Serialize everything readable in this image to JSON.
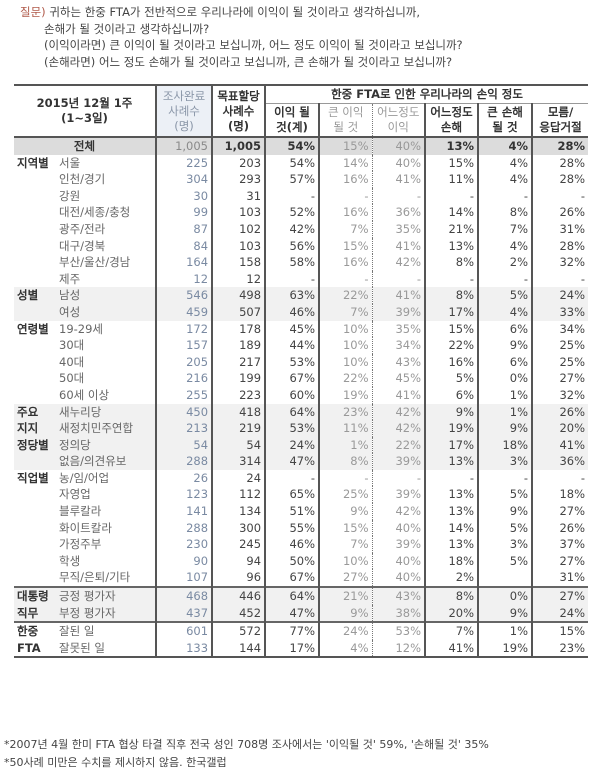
{
  "question": {
    "tag": "질문)",
    "lines": [
      "귀하는 한중 FTA가 전반적으로 우리나라에 이익이 될 것이라고 생각하십니까,",
      "손해가 될 것이라고 생각하십니까?",
      "(이익이라면) 큰 이익이 될 것이라고 보십니까, 어느 정도 이익이 될 것이라고 보십니까?",
      "(손해라면) 어느 정도 손해가 될 것이라고 보십니까, 큰 손해가 될 것이라고 보십니까?"
    ]
  },
  "table": {
    "header": {
      "period_line1": "2015년 12월 1주",
      "period_line2": "(1~3일)",
      "done_l1": "조사완료",
      "done_l2": "사례수",
      "done_l3": "(명)",
      "target_l1": "목표할당",
      "target_l2": "사례수",
      "target_l3": "(명)",
      "group_title": "한중 FTA로 인한 우리나라의 손익 정도",
      "cols": [
        {
          "l1": "이익 될",
          "l2": "것(계)"
        },
        {
          "l1": "큰 이익",
          "l2": "될 것"
        },
        {
          "l1": "어느정도",
          "l2": "이익"
        },
        {
          "l1": "어느정도",
          "l2": "손해"
        },
        {
          "l1": "큰 손해",
          "l2": "될 것"
        },
        {
          "l1": "모름/",
          "l2": "응답거절"
        }
      ]
    },
    "total": {
      "group": "전체",
      "done": "1,005",
      "target": "1,005",
      "v": [
        "54%",
        "15%",
        "40%",
        "13%",
        "4%",
        "28%"
      ]
    },
    "rows": [
      {
        "group": "지역별",
        "sub": "서울",
        "done": "225",
        "target": "203",
        "v": [
          "54%",
          "14%",
          "40%",
          "15%",
          "4%",
          "28%"
        ]
      },
      {
        "group": "",
        "sub": "인천/경기",
        "done": "304",
        "target": "293",
        "v": [
          "57%",
          "16%",
          "41%",
          "11%",
          "4%",
          "28%"
        ]
      },
      {
        "group": "",
        "sub": "강원",
        "done": "30",
        "target": "31",
        "v": [
          "-",
          "-",
          "-",
          "-",
          "-",
          "-"
        ]
      },
      {
        "group": "",
        "sub": "대전/세종/충청",
        "done": "99",
        "target": "103",
        "v": [
          "52%",
          "16%",
          "36%",
          "14%",
          "8%",
          "26%"
        ]
      },
      {
        "group": "",
        "sub": "광주/전라",
        "done": "87",
        "target": "102",
        "v": [
          "42%",
          "7%",
          "35%",
          "21%",
          "7%",
          "31%"
        ]
      },
      {
        "group": "",
        "sub": "대구/경북",
        "done": "84",
        "target": "103",
        "v": [
          "56%",
          "15%",
          "41%",
          "13%",
          "4%",
          "28%"
        ]
      },
      {
        "group": "",
        "sub": "부산/울산/경남",
        "done": "164",
        "target": "158",
        "v": [
          "58%",
          "16%",
          "42%",
          "8%",
          "2%",
          "32%"
        ]
      },
      {
        "group": "",
        "sub": "제주",
        "done": "12",
        "target": "12",
        "v": [
          "-",
          "-",
          "-",
          "-",
          "-",
          "-"
        ]
      },
      {
        "group": "성별",
        "sub": "남성",
        "done": "546",
        "target": "498",
        "v": [
          "63%",
          "22%",
          "41%",
          "8%",
          "5%",
          "24%"
        ]
      },
      {
        "group": "",
        "sub": "여성",
        "done": "459",
        "target": "507",
        "v": [
          "46%",
          "7%",
          "39%",
          "17%",
          "4%",
          "33%"
        ]
      },
      {
        "group": "연령별",
        "sub": "19-29세",
        "done": "172",
        "target": "178",
        "v": [
          "45%",
          "10%",
          "35%",
          "15%",
          "6%",
          "34%"
        ]
      },
      {
        "group": "",
        "sub": "30대",
        "done": "157",
        "target": "189",
        "v": [
          "44%",
          "10%",
          "34%",
          "22%",
          "9%",
          "25%"
        ]
      },
      {
        "group": "",
        "sub": "40대",
        "done": "205",
        "target": "217",
        "v": [
          "53%",
          "10%",
          "43%",
          "16%",
          "6%",
          "25%"
        ]
      },
      {
        "group": "",
        "sub": "50대",
        "done": "216",
        "target": "199",
        "v": [
          "67%",
          "22%",
          "45%",
          "5%",
          "0%",
          "27%"
        ]
      },
      {
        "group": "",
        "sub": "60세 이상",
        "done": "255",
        "target": "223",
        "v": [
          "60%",
          "19%",
          "41%",
          "6%",
          "1%",
          "32%"
        ]
      },
      {
        "group": "주요",
        "sub": "새누리당",
        "done": "450",
        "target": "418",
        "v": [
          "64%",
          "23%",
          "42%",
          "9%",
          "1%",
          "26%"
        ]
      },
      {
        "group": "지지",
        "sub": "새정치민주연합",
        "done": "213",
        "target": "219",
        "v": [
          "53%",
          "11%",
          "42%",
          "19%",
          "9%",
          "20%"
        ]
      },
      {
        "group": "정당별",
        "sub": "정의당",
        "done": "54",
        "target": "54",
        "v": [
          "24%",
          "1%",
          "22%",
          "17%",
          "18%",
          "41%"
        ]
      },
      {
        "group": "",
        "sub": "없음/의견유보",
        "done": "288",
        "target": "314",
        "v": [
          "47%",
          "8%",
          "39%",
          "13%",
          "3%",
          "36%"
        ]
      },
      {
        "group": "직업별",
        "sub": "농/임/어업",
        "done": "26",
        "target": "24",
        "v": [
          "-",
          "-",
          "-",
          "-",
          "-",
          "-"
        ]
      },
      {
        "group": "",
        "sub": "자영업",
        "done": "123",
        "target": "112",
        "v": [
          "65%",
          "25%",
          "39%",
          "13%",
          "5%",
          "18%"
        ]
      },
      {
        "group": "",
        "sub": "블루칼라",
        "done": "141",
        "target": "134",
        "v": [
          "51%",
          "9%",
          "42%",
          "13%",
          "9%",
          "27%"
        ]
      },
      {
        "group": "",
        "sub": "화이트칼라",
        "done": "288",
        "target": "300",
        "v": [
          "55%",
          "15%",
          "40%",
          "14%",
          "5%",
          "26%"
        ]
      },
      {
        "group": "",
        "sub": "가정주부",
        "done": "230",
        "target": "245",
        "v": [
          "46%",
          "7%",
          "39%",
          "13%",
          "3%",
          "37%"
        ]
      },
      {
        "group": "",
        "sub": "학생",
        "done": "90",
        "target": "94",
        "v": [
          "50%",
          "10%",
          "40%",
          "18%",
          "5%",
          "27%"
        ]
      },
      {
        "group": "",
        "sub": "무직/은퇴/기타",
        "done": "107",
        "target": "96",
        "v": [
          "67%",
          "27%",
          "40%",
          "2%",
          "",
          "31%"
        ]
      },
      {
        "group": "대통령",
        "sub": "긍정 평가자",
        "done": "468",
        "target": "446",
        "v": [
          "64%",
          "21%",
          "43%",
          "8%",
          "0%",
          "27%"
        ]
      },
      {
        "group": "직무",
        "sub": "부정 평가자",
        "done": "437",
        "target": "452",
        "v": [
          "47%",
          "9%",
          "38%",
          "20%",
          "9%",
          "24%"
        ]
      },
      {
        "group": "한중",
        "sub": "잘된 일",
        "done": "601",
        "target": "572",
        "v": [
          "77%",
          "24%",
          "53%",
          "7%",
          "1%",
          "15%"
        ]
      },
      {
        "group": "FTA",
        "sub": "잘못된 일",
        "done": "133",
        "target": "144",
        "v": [
          "17%",
          "4%",
          "12%",
          "41%",
          "19%",
          "23%"
        ]
      }
    ]
  },
  "notes": [
    "*2007년 4월 한미 FTA 협상 타결 직후 전국 성인 708명 조사에서는 '이익될 것' 59%, '손해될 것' 35%",
    "*50사례 미만은 수치를 제시하지 않음. 한국갤럽"
  ]
}
